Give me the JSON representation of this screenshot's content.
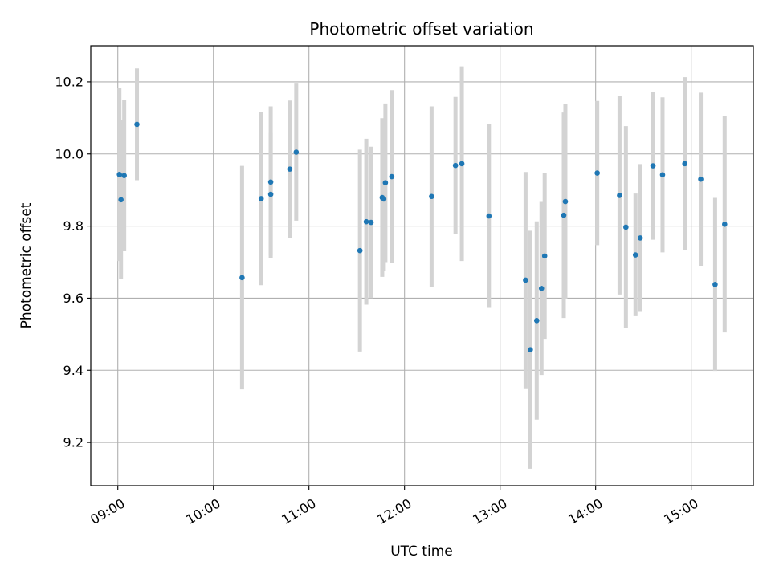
{
  "chart_data": {
    "type": "scatter",
    "title": "Photometric offset variation",
    "xlabel": "UTC time",
    "ylabel": "Photometric offset",
    "x_ticks": [
      "09:00",
      "10:00",
      "11:00",
      "12:00",
      "13:00",
      "14:00",
      "15:00"
    ],
    "y_ticks": [
      9.2,
      9.4,
      9.6,
      9.8,
      10.0,
      10.2
    ],
    "xlim": [
      "08:43",
      "15:39"
    ],
    "ylim": [
      9.08,
      10.3
    ],
    "grid": true,
    "colors": {
      "point": "#1f77b4",
      "errorbar": "#d3d3d3",
      "grid": "#b0b0b0"
    },
    "series": [
      {
        "points": [
          {
            "x": "09:01",
            "y": 9.943,
            "err": 0.24
          },
          {
            "x": "09:02",
            "y": 9.873,
            "err": 0.22
          },
          {
            "x": "09:04",
            "y": 9.94,
            "err": 0.21
          },
          {
            "x": "09:12",
            "y": 10.082,
            "err": 0.155
          },
          {
            "x": "10:18",
            "y": 9.657,
            "err": 0.31
          },
          {
            "x": "10:30",
            "y": 9.876,
            "err": 0.24
          },
          {
            "x": "10:36",
            "y": 9.888,
            "err": 0.17
          },
          {
            "x": "10:36",
            "y": 9.922,
            "err": 0.21
          },
          {
            "x": "10:48",
            "y": 9.958,
            "err": 0.19
          },
          {
            "x": "10:52",
            "y": 10.005,
            "err": 0.19
          },
          {
            "x": "11:32",
            "y": 9.732,
            "err": 0.28
          },
          {
            "x": "11:36",
            "y": 9.812,
            "err": 0.23
          },
          {
            "x": "11:39",
            "y": 9.81,
            "err": 0.21
          },
          {
            "x": "11:46",
            "y": 9.879,
            "err": 0.22
          },
          {
            "x": "11:47",
            "y": 9.875,
            "err": 0.2
          },
          {
            "x": "11:48",
            "y": 9.92,
            "err": 0.22
          },
          {
            "x": "11:52",
            "y": 9.937,
            "err": 0.24
          },
          {
            "x": "12:17",
            "y": 9.882,
            "err": 0.25
          },
          {
            "x": "12:32",
            "y": 9.968,
            "err": 0.19
          },
          {
            "x": "12:36",
            "y": 9.973,
            "err": 0.27
          },
          {
            "x": "12:53",
            "y": 9.828,
            "err": 0.255
          },
          {
            "x": "13:16",
            "y": 9.65,
            "err": 0.3
          },
          {
            "x": "13:19",
            "y": 9.457,
            "err": 0.33
          },
          {
            "x": "13:23",
            "y": 9.538,
            "err": 0.275
          },
          {
            "x": "13:26",
            "y": 9.627,
            "err": 0.24
          },
          {
            "x": "13:28",
            "y": 9.717,
            "err": 0.23
          },
          {
            "x": "13:40",
            "y": 9.83,
            "err": 0.285
          },
          {
            "x": "13:41",
            "y": 9.868,
            "err": 0.27
          },
          {
            "x": "14:01",
            "y": 9.947,
            "err": 0.2
          },
          {
            "x": "14:15",
            "y": 9.885,
            "err": 0.275
          },
          {
            "x": "14:19",
            "y": 9.797,
            "err": 0.28
          },
          {
            "x": "14:25",
            "y": 9.72,
            "err": 0.17
          },
          {
            "x": "14:28",
            "y": 9.767,
            "err": 0.205
          },
          {
            "x": "14:36",
            "y": 9.967,
            "err": 0.205
          },
          {
            "x": "14:42",
            "y": 9.942,
            "err": 0.215
          },
          {
            "x": "14:56",
            "y": 9.973,
            "err": 0.24
          },
          {
            "x": "15:06",
            "y": 9.93,
            "err": 0.24
          },
          {
            "x": "15:15",
            "y": 9.638,
            "err": 0.24
          },
          {
            "x": "15:21",
            "y": 9.805,
            "err": 0.3
          }
        ]
      }
    ]
  }
}
